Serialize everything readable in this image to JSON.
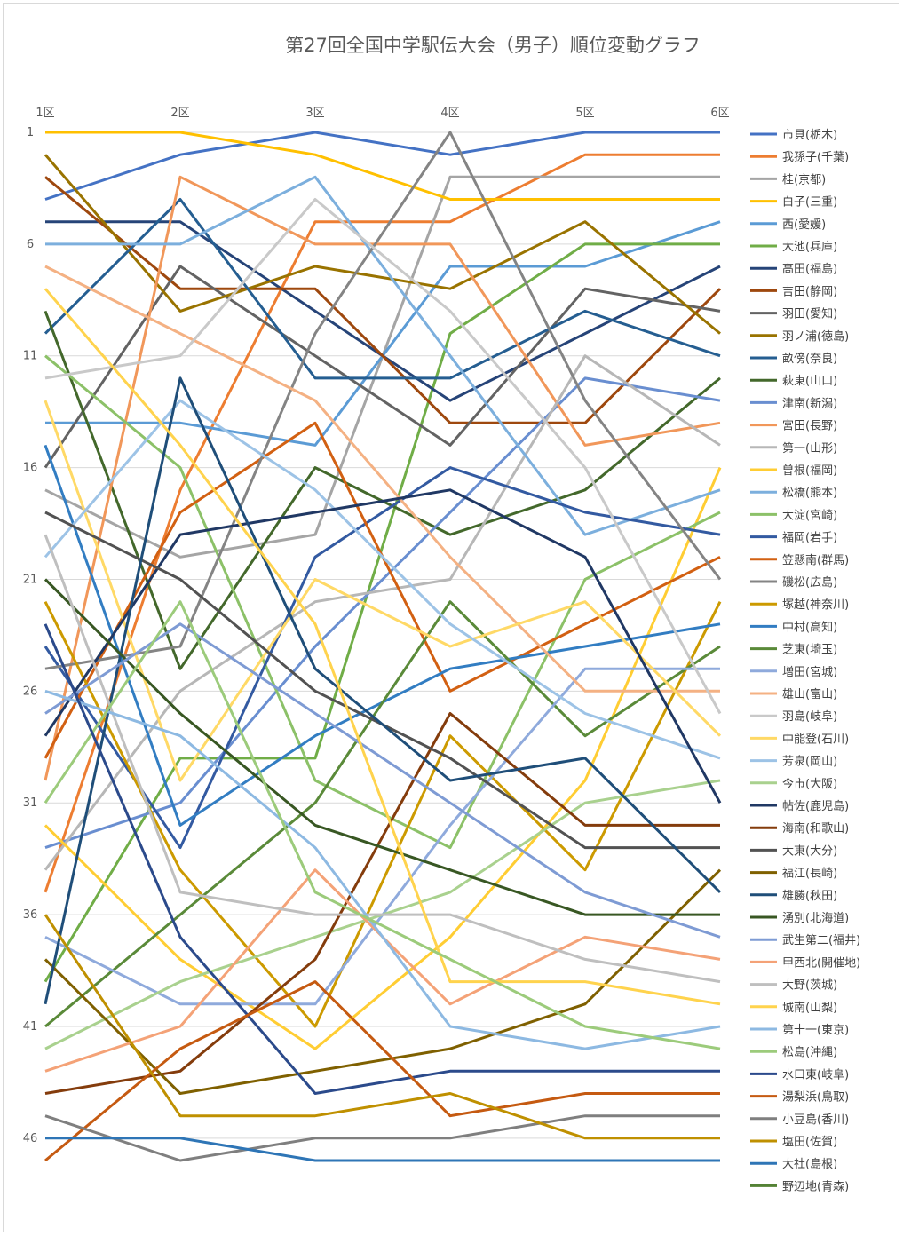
{
  "chart_data": {
    "type": "line",
    "title": "第27回全国中学駅伝大会（男子）順位変動グラフ",
    "xlabel": "",
    "ylabel": "",
    "categories": [
      "1区",
      "2区",
      "3区",
      "4区",
      "5区",
      "6区"
    ],
    "ylim": [
      1,
      47
    ],
    "y_reversed": true,
    "y_ticks": [
      1,
      6,
      11,
      16,
      21,
      26,
      31,
      36,
      41,
      46
    ],
    "grid": true,
    "legend_position": "right",
    "series": [
      {
        "name": "市貝(栃木)",
        "color": "#4472C4",
        "values": [
          4,
          2,
          1,
          2,
          1,
          1
        ]
      },
      {
        "name": "我孫子(千葉)",
        "color": "#ED7D31",
        "values": [
          35,
          17,
          5,
          5,
          2,
          2
        ]
      },
      {
        "name": "桂(京都)",
        "color": "#A5A5A5",
        "values": [
          17,
          20,
          19,
          3,
          3,
          3
        ]
      },
      {
        "name": "白子(三重)",
        "color": "#FFC000",
        "values": [
          1,
          1,
          2,
          4,
          4,
          4
        ]
      },
      {
        "name": "西(愛媛)",
        "color": "#5B9BD5",
        "values": [
          14,
          14,
          15,
          7,
          7,
          5
        ]
      },
      {
        "name": "大池(兵庫)",
        "color": "#70AD47",
        "values": [
          39,
          29,
          29,
          10,
          6,
          6
        ]
      },
      {
        "name": "高田(福島)",
        "color": "#264478",
        "values": [
          5,
          5,
          9,
          13,
          10,
          7
        ]
      },
      {
        "name": "吉田(静岡)",
        "color": "#9E480E",
        "values": [
          3,
          8,
          8,
          14,
          14,
          8
        ]
      },
      {
        "name": "羽田(愛知)",
        "color": "#636363",
        "values": [
          16,
          7,
          11,
          15,
          8,
          9
        ]
      },
      {
        "name": "羽ノ浦(徳島)",
        "color": "#997300",
        "values": [
          2,
          9,
          7,
          8,
          5,
          10
        ]
      },
      {
        "name": "畝傍(奈良)",
        "color": "#255E91",
        "values": [
          10,
          4,
          12,
          12,
          9,
          11
        ]
      },
      {
        "name": "萩東(山口)",
        "color": "#43682B",
        "values": [
          9,
          25,
          16,
          19,
          17,
          12
        ]
      },
      {
        "name": "津南(新潟)",
        "color": "#698ED0",
        "values": [
          33,
          31,
          24,
          18,
          12,
          13
        ]
      },
      {
        "name": "宮田(長野)",
        "color": "#F1975A",
        "values": [
          30,
          3,
          6,
          6,
          15,
          14
        ]
      },
      {
        "name": "第一(山形)",
        "color": "#B7B7B7",
        "values": [
          34,
          26,
          22,
          21,
          11,
          15
        ]
      },
      {
        "name": "曽根(福岡)",
        "color": "#FFCD33",
        "values": [
          32,
          38,
          42,
          37,
          30,
          16
        ]
      },
      {
        "name": "松橋(熊本)",
        "color": "#7CAFDD",
        "values": [
          6,
          6,
          3,
          11,
          19,
          17
        ]
      },
      {
        "name": "大淀(宮崎)",
        "color": "#8CC168",
        "values": [
          11,
          16,
          30,
          33,
          21,
          18
        ]
      },
      {
        "name": "福岡(岩手)",
        "color": "#335AA1",
        "values": [
          24,
          33,
          20,
          16,
          18,
          19
        ]
      },
      {
        "name": "笠懸南(群馬)",
        "color": "#D26012",
        "values": [
          29,
          18,
          14,
          26,
          23,
          20
        ]
      },
      {
        "name": "磯松(広島)",
        "color": "#848484",
        "values": [
          25,
          24,
          10,
          1,
          13,
          21
        ]
      },
      {
        "name": "塚越(神奈川)",
        "color": "#CC9A00",
        "values": [
          22,
          34,
          41,
          28,
          34,
          22
        ]
      },
      {
        "name": "中村(高知)",
        "color": "#327DC2",
        "values": [
          15,
          32,
          28,
          25,
          24,
          23
        ]
      },
      {
        "name": "芝東(埼玉)",
        "color": "#5A8A39",
        "values": [
          41,
          36,
          31,
          22,
          28,
          24
        ]
      },
      {
        "name": "増田(宮城)",
        "color": "#8FAADC",
        "values": [
          37,
          40,
          40,
          32,
          25,
          25
        ]
      },
      {
        "name": "雄山(富山)",
        "color": "#F4B183",
        "values": [
          7,
          10,
          13,
          20,
          26,
          26
        ]
      },
      {
        "name": "羽島(岐阜)",
        "color": "#C9C9C9",
        "values": [
          12,
          11,
          4,
          9,
          16,
          27
        ]
      },
      {
        "name": "中能登(石川)",
        "color": "#FFD966",
        "values": [
          13,
          30,
          21,
          24,
          22,
          28
        ]
      },
      {
        "name": "芳泉(岡山)",
        "color": "#9DC3E6",
        "values": [
          20,
          13,
          17,
          23,
          27,
          29
        ]
      },
      {
        "name": "今市(大阪)",
        "color": "#A9D18E",
        "values": [
          42,
          39,
          37,
          35,
          31,
          30
        ]
      },
      {
        "name": "帖佐(鹿児島)",
        "color": "#203864",
        "values": [
          28,
          19,
          18,
          17,
          20,
          31
        ]
      },
      {
        "name": "海南(和歌山)",
        "color": "#843C0C",
        "values": [
          44,
          43,
          38,
          27,
          32,
          32
        ]
      },
      {
        "name": "大東(大分)",
        "color": "#525252",
        "values": [
          18,
          21,
          26,
          29,
          33,
          33
        ]
      },
      {
        "name": "福江(長崎)",
        "color": "#7F6000",
        "values": [
          38,
          44,
          43,
          42,
          40,
          34
        ]
      },
      {
        "name": "雄勝(秋田)",
        "color": "#1F4E79",
        "values": [
          40,
          12,
          25,
          30,
          29,
          35
        ]
      },
      {
        "name": "湧別(北海道)",
        "color": "#385723",
        "values": [
          21,
          27,
          32,
          34,
          36,
          36
        ]
      },
      {
        "name": "武生第二(福井)",
        "color": "#7E9BD4",
        "values": [
          27,
          23,
          27,
          31,
          35,
          37
        ]
      },
      {
        "name": "甲西北(開催地)",
        "color": "#F4A277",
        "values": [
          43,
          41,
          34,
          40,
          37,
          38
        ]
      },
      {
        "name": "大野(茨城)",
        "color": "#BFBFBF",
        "values": [
          19,
          35,
          36,
          36,
          38,
          39
        ]
      },
      {
        "name": "城南(山梨)",
        "color": "#FFD34D",
        "values": [
          8,
          15,
          23,
          39,
          39,
          40
        ]
      },
      {
        "name": "第十一(東京)",
        "color": "#8DB9E2",
        "values": [
          26,
          28,
          33,
          41,
          42,
          41
        ]
      },
      {
        "name": "松島(沖縄)",
        "color": "#9CCB7B",
        "values": [
          31,
          22,
          35,
          38,
          41,
          42
        ]
      },
      {
        "name": "水口東(岐阜)",
        "color": "#2B4A8B",
        "values": [
          23,
          37,
          44,
          43,
          43,
          43
        ]
      },
      {
        "name": "湯梨浜(鳥取)",
        "color": "#C55A11",
        "values": [
          47,
          42,
          39,
          45,
          44,
          44
        ]
      },
      {
        "name": "小豆島(香川)",
        "color": "#7F7F7F",
        "values": [
          45,
          47,
          46,
          46,
          45,
          45
        ]
      },
      {
        "name": "塩田(佐賀)",
        "color": "#BF9000",
        "values": [
          36,
          45,
          45,
          44,
          46,
          46
        ]
      },
      {
        "name": "大社(島根)",
        "color": "#2E75B6",
        "values": [
          46,
          46,
          47,
          47,
          47,
          47
        ]
      },
      {
        "name": "野辺地(青森)",
        "color": "#548235",
        "values": [
          null,
          null,
          null,
          null,
          null,
          null
        ]
      }
    ]
  }
}
